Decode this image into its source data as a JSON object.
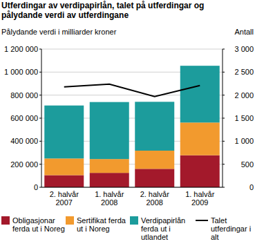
{
  "chart_data": {
    "type": "bar",
    "title": "Utferdingar av verdipapirlån, talet på utferdingar og pålydande verdi av utferdingane",
    "y_label": "Pålydande verdi i milliarder kroner",
    "y2_label": "Antall",
    "categories": [
      "2. halvår 2007",
      "1. halvår 2008",
      "2. halvår 2008",
      "1. halvår 2009"
    ],
    "stacked": true,
    "grid": true,
    "legend": "bottom",
    "ylim": [
      0,
      1200000
    ],
    "yticks": [
      0,
      {
        "value": 200000,
        "label": "200 000"
      },
      {
        "value": 400000,
        "label": "400 000"
      },
      {
        "value": 600000,
        "label": "600 000"
      },
      {
        "value": 800000,
        "label": "800 000"
      },
      {
        "value": 1000000,
        "label": "1 000 000"
      },
      {
        "value": 1200000,
        "label": "1 200 000"
      }
    ],
    "y2lim": [
      0,
      3000
    ],
    "y2ticks": [
      0,
      500,
      {
        "value": 1000,
        "label": "1 000"
      },
      {
        "value": 1500,
        "label": "1 500"
      },
      {
        "value": 2000,
        "label": "2 000"
      },
      {
        "value": 2500,
        "label": "2 500"
      },
      {
        "value": 3000,
        "label": "3 000"
      }
    ],
    "series": [
      {
        "name": "Obligasjonar ferda ut i Noreg",
        "type": "bar",
        "color": "#a3192b",
        "values": [
          105000,
          125000,
          160000,
          278000
        ]
      },
      {
        "name": "Sertifikat ferda ut i Noreg",
        "type": "bar",
        "color": "#f29a2e",
        "values": [
          145000,
          120000,
          158000,
          284000
        ]
      },
      {
        "name": "Verdipapirlån ferda ut i utlandet",
        "type": "bar",
        "color": "#1c9c9c",
        "values": [
          460000,
          495000,
          424000,
          493000
        ]
      },
      {
        "name": "Talet utferdingar i alt",
        "type": "line",
        "axis": "y2",
        "color": "#000000",
        "values": [
          2180,
          2240,
          1970,
          2210
        ]
      }
    ]
  }
}
